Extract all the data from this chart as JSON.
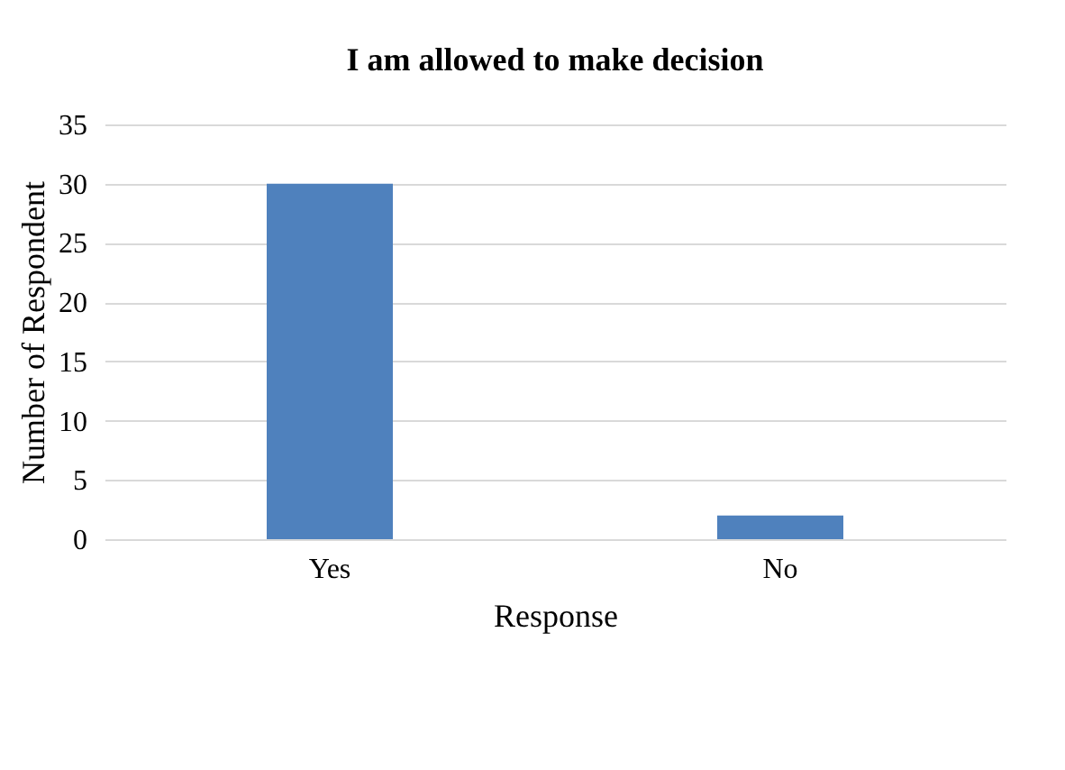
{
  "chart_data": {
    "type": "bar",
    "title": "I am allowed to make decision",
    "xlabel": "Response",
    "ylabel": "Number of Respondent",
    "categories": [
      "Yes",
      "No"
    ],
    "values": [
      30,
      2
    ],
    "color": "#4f81bd",
    "ylim": [
      0,
      35
    ],
    "yticks": [
      0,
      5,
      10,
      15,
      20,
      25,
      30,
      35
    ],
    "grid": "y"
  }
}
